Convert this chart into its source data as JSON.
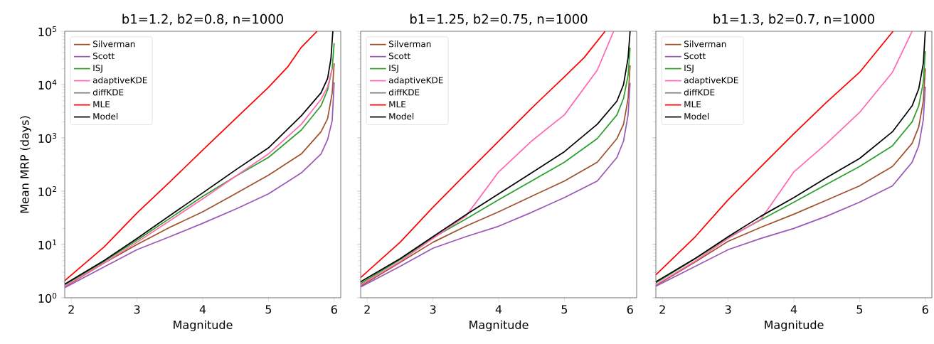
{
  "chart_data": [
    {
      "type": "line",
      "title": "b1=1.2, b2=0.8, n=1000",
      "xlabel": "Magnitude",
      "ylabel": "Mean MRP (days)",
      "log": "y",
      "legend": "top left",
      "xlim": [
        1.9,
        6.1
      ],
      "ylim": [
        1,
        100000
      ],
      "xticks": [
        2,
        3,
        4,
        5,
        6
      ],
      "yticks": [
        {
          "value": 1,
          "label": "10$^{0}$"
        },
        {
          "value": 10,
          "label": "10$^{1}$"
        },
        {
          "value": 100,
          "label": "10$^{2}$"
        },
        {
          "value": 1000,
          "label": "10$^{3}$"
        },
        {
          "value": 10000,
          "label": "10$^{4}$"
        },
        {
          "value": 100000,
          "label": "10$^{5}$"
        }
      ],
      "series": [
        {
          "name": "Silverman",
          "color": "#a0522d",
          "x": [
            1.9,
            2.5,
            3,
            3.5,
            4,
            4.5,
            5,
            5.5,
            5.8,
            5.9,
            5.97,
            6.0
          ],
          "values": [
            1.6,
            4.5,
            10,
            21,
            41,
            90,
            200,
            500,
            1300,
            2300,
            7000,
            25000
          ]
        },
        {
          "name": "Scott",
          "color": "#9b59b6",
          "x": [
            1.9,
            2.5,
            3,
            3.5,
            4,
            4.5,
            5,
            5.5,
            5.8,
            5.9,
            5.97,
            6.0
          ],
          "values": [
            1.55,
            3.8,
            8,
            14,
            25,
            46,
            89,
            220,
            500,
            930,
            2100,
            11000
          ]
        },
        {
          "name": "ISJ",
          "color": "#2ca02c",
          "x": [
            1.9,
            2.5,
            3,
            3.5,
            4,
            4.5,
            5,
            5.5,
            5.8,
            5.9,
            5.97,
            6.0
          ],
          "values": [
            1.75,
            4.8,
            12,
            31,
            80,
            190,
            430,
            1400,
            4000,
            8000,
            20000,
            60000
          ]
        },
        {
          "name": "adaptiveKDE",
          "color": "#ff69b4",
          "x": [
            1.9,
            2.5,
            3,
            3.5,
            4,
            4.5,
            5,
            5.5,
            5.8,
            5.9,
            5.97
          ],
          "values": [
            1.65,
            4.5,
            11,
            28,
            72,
            190,
            500,
            1800,
            5300,
            9000,
            20000
          ]
        },
        {
          "name": "diffKDE",
          "color": "#808080",
          "values": [
            null
          ]
        },
        {
          "name": "MLE",
          "color": "#ff0000",
          "x": [
            1.9,
            2.5,
            3,
            3.5,
            4,
            4.5,
            5,
            5.3,
            5.5,
            5.74
          ],
          "values": [
            2.1,
            9,
            39,
            150,
            590,
            2300,
            8900,
            22000,
            50000,
            100000
          ]
        },
        {
          "name": "Model",
          "color": "#000000",
          "x": [
            1.9,
            2.5,
            3,
            3.5,
            4,
            4.5,
            5,
            5.5,
            5.8,
            5.9,
            5.95,
            5.98
          ],
          "values": [
            1.8,
            5,
            13,
            35,
            93,
            250,
            650,
            2600,
            7000,
            13000,
            30000,
            100000
          ]
        }
      ]
    },
    {
      "type": "line",
      "title": "b1=1.25, b2=0.75, n=1000",
      "xlabel": "Magnitude",
      "log": "y",
      "legend": "top left",
      "tick_labels": "x",
      "xlim": [
        1.9,
        6.1
      ],
      "ylim": [
        1,
        100000
      ],
      "xticks": [
        2,
        3,
        4,
        5,
        6
      ],
      "yticks": [
        1,
        10,
        100,
        1000,
        10000,
        100000
      ],
      "series": [
        {
          "name": "Silverman",
          "color": "#a0522d",
          "x": [
            1.9,
            2.5,
            3,
            3.5,
            4,
            4.5,
            5,
            5.5,
            5.8,
            5.9,
            5.97,
            6.0
          ],
          "values": [
            1.65,
            4.6,
            11,
            22,
            41,
            80,
            155,
            350,
            970,
            1800,
            5500,
            23000
          ]
        },
        {
          "name": "Scott",
          "color": "#9b59b6",
          "x": [
            1.9,
            2.5,
            3,
            3.5,
            4,
            4.5,
            5,
            5.5,
            5.8,
            5.9,
            5.97,
            6.0
          ],
          "values": [
            1.6,
            3.9,
            8.5,
            14,
            22,
            40,
            76,
            155,
            430,
            870,
            2700,
            10700
          ]
        },
        {
          "name": "ISJ",
          "color": "#2ca02c",
          "x": [
            1.9,
            2.5,
            3,
            3.5,
            4,
            4.5,
            5,
            5.5,
            5.8,
            5.9,
            5.97,
            6.0
          ],
          "values": [
            1.85,
            5.2,
            13.4,
            30,
            69,
            155,
            350,
            970,
            2700,
            5500,
            15000,
            49000
          ]
        },
        {
          "name": "adaptiveKDE",
          "color": "#ff69b4",
          "x": [
            1.9,
            2.5,
            3,
            3.5,
            4,
            4.5,
            5,
            5.5,
            5.75
          ],
          "values": [
            1.75,
            4.8,
            13,
            34,
            230,
            870,
            2700,
            18600,
            100000
          ]
        },
        {
          "name": "diffKDE",
          "color": "#808080",
          "values": [
            null
          ]
        },
        {
          "name": "MLE",
          "color": "#ff0000",
          "x": [
            1.9,
            2.5,
            3,
            3.5,
            4,
            4.5,
            5,
            5.3,
            5.62
          ],
          "values": [
            2.4,
            11,
            50,
            210,
            870,
            3600,
            14000,
            32000,
            100000
          ]
        },
        {
          "name": "Model",
          "color": "#000000",
          "x": [
            1.9,
            2.5,
            3,
            3.5,
            4,
            4.5,
            5,
            5.5,
            5.8,
            5.9,
            5.97,
            6.0
          ],
          "values": [
            2.0,
            5.4,
            14,
            36,
            89,
            220,
            550,
            1800,
            4900,
            10000,
            32000,
            100000
          ]
        }
      ]
    },
    {
      "type": "line",
      "title": "b1=1.3, b2=0.7, n=1000",
      "xlabel": "Magnitude",
      "log": "y",
      "legend": "top left",
      "tick_labels": "x",
      "xlim": [
        1.9,
        6.1
      ],
      "ylim": [
        1,
        100000
      ],
      "xticks": [
        2,
        3,
        4,
        5,
        6
      ],
      "yticks": [
        1,
        10,
        100,
        1000,
        10000,
        100000
      ],
      "series": [
        {
          "name": "Silverman",
          "color": "#a0522d",
          "x": [
            1.9,
            2.5,
            3,
            3.5,
            4,
            4.5,
            5,
            5.5,
            5.8,
            5.9,
            5.97,
            6.0
          ],
          "values": [
            1.7,
            4.7,
            11.5,
            21,
            37,
            68,
            126,
            290,
            790,
            1600,
            4900,
            20000
          ]
        },
        {
          "name": "Scott",
          "color": "#9b59b6",
          "x": [
            1.9,
            2.5,
            3,
            3.5,
            4,
            4.5,
            5,
            5.5,
            5.8,
            5.9,
            5.97,
            6.0
          ],
          "values": [
            1.65,
            3.9,
            8,
            13,
            20,
            34,
            62,
            126,
            350,
            710,
            2200,
            9100
          ]
        },
        {
          "name": "ISJ",
          "color": "#2ca02c",
          "x": [
            1.9,
            2.5,
            3,
            3.5,
            4,
            4.5,
            5,
            5.5,
            5.8,
            5.9,
            5.97,
            6.0
          ],
          "values": [
            1.9,
            5.4,
            13.5,
            29,
            62,
            135,
            290,
            710,
            2000,
            4000,
            11000,
            42000
          ]
        },
        {
          "name": "adaptiveKDE",
          "color": "#ff69b4",
          "x": [
            1.9,
            2.5,
            3,
            3.5,
            4,
            4.5,
            5,
            5.5,
            5.8
          ],
          "values": [
            1.75,
            4.9,
            13,
            30,
            230,
            790,
            3000,
            17000,
            100000
          ]
        },
        {
          "name": "diffKDE",
          "color": "#808080",
          "values": [
            null
          ]
        },
        {
          "name": "MLE",
          "color": "#ff0000",
          "x": [
            1.9,
            2.5,
            3,
            3.5,
            4,
            4.5,
            5,
            5.51
          ],
          "values": [
            2.7,
            14,
            69,
            290,
            1200,
            4700,
            17000,
            100000
          ]
        },
        {
          "name": "Model",
          "color": "#000000",
          "x": [
            1.9,
            2.5,
            3,
            3.5,
            4,
            4.5,
            5,
            5.5,
            5.8,
            5.9,
            5.97,
            6.0
          ],
          "values": [
            2.0,
            5.5,
            14,
            34,
            76,
            180,
            410,
            1300,
            4000,
            8300,
            25000,
            100000
          ]
        }
      ]
    }
  ]
}
